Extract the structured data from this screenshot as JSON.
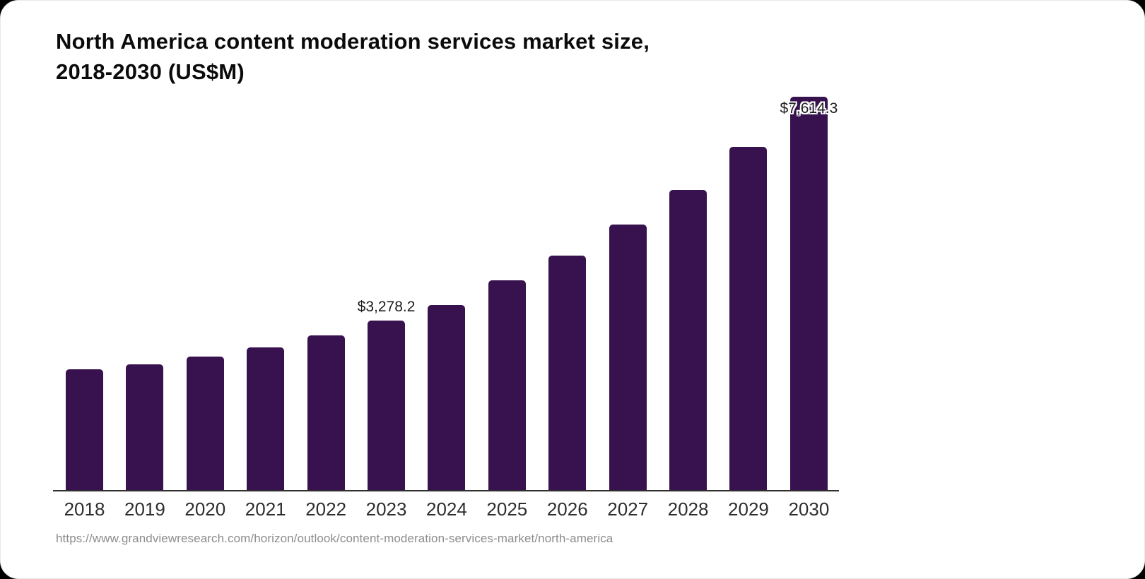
{
  "page": {
    "title_line1": "North America content moderation services market size,",
    "title_line2": "2018-2030 (US$M)",
    "source_url": "https://www.grandviewresearch.com/horizon/outlook/content-moderation-services-market/north-america"
  },
  "chart_data": {
    "type": "bar",
    "title": "North America content moderation services market size, 2018-2030 (US$M)",
    "xlabel": "",
    "ylabel": "",
    "unit": "US$M",
    "categories": [
      "2018",
      "2019",
      "2020",
      "2021",
      "2022",
      "2023",
      "2024",
      "2025",
      "2026",
      "2027",
      "2028",
      "2029",
      "2030"
    ],
    "values": [
      2340,
      2440,
      2590,
      2760,
      2990,
      3278.2,
      3580,
      4060,
      4540,
      5140,
      5810,
      6640,
      7614.3
    ],
    "ylim": [
      0,
      7614.3
    ],
    "grid": false,
    "legend": false,
    "bar_color": "#38124e",
    "data_labels": [
      {
        "category": "2023",
        "text": "$3,278.2",
        "placement": "above"
      },
      {
        "category": "2030",
        "text": "$7,614.3",
        "placement": "overlap-top"
      }
    ]
  }
}
